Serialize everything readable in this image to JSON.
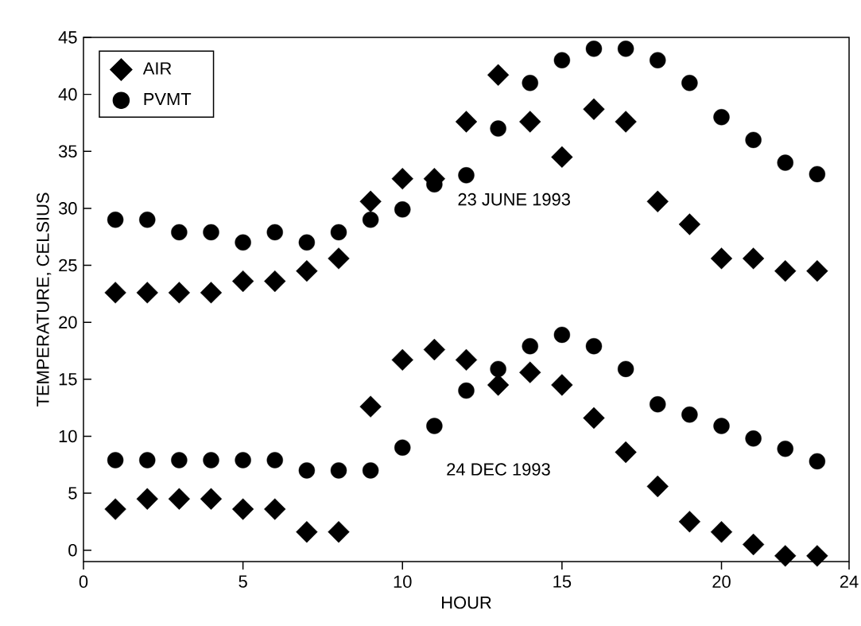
{
  "chart_data": {
    "type": "scatter",
    "xlabel": "HOUR",
    "ylabel": "TEMPERATURE, CELSIUS",
    "x": [
      1,
      2,
      3,
      4,
      5,
      6,
      7,
      8,
      9,
      10,
      11,
      12,
      13,
      14,
      15,
      16,
      17,
      18,
      19,
      20,
      21,
      22,
      23
    ],
    "series": [
      {
        "name": "AIR",
        "color": "#000000",
        "marker": "diamond",
        "values": [
          22.6,
          22.6,
          22.6,
          22.6,
          23.6,
          23.6,
          24.5,
          25.6,
          30.6,
          32.6,
          32.6,
          37.6,
          41.7,
          37.6,
          34.5,
          38.7,
          37.6,
          30.6,
          28.6,
          25.6,
          25.6,
          24.5,
          24.5
        ]
      },
      {
        "name": "PVMT",
        "color": "#000000",
        "marker": "circle",
        "values": [
          29,
          29,
          27.9,
          27.9,
          27,
          27.9,
          27,
          27.9,
          29,
          29.9,
          32.1,
          32.9,
          37,
          41,
          43,
          44,
          44,
          43,
          41,
          38,
          36,
          34,
          33
        ]
      },
      {
        "color": "#000000",
        "marker": "diamond",
        "values": [
          3.6,
          4.5,
          4.5,
          4.5,
          3.6,
          3.6,
          1.6,
          1.6,
          12.6,
          16.7,
          17.6,
          16.7,
          14.5,
          15.6,
          14.5,
          11.6,
          8.6,
          5.6,
          2.5,
          1.6,
          0.5,
          -0.5,
          -0.5
        ]
      },
      {
        "color": "#000000",
        "marker": "circle",
        "values": [
          7.9,
          7.9,
          7.9,
          7.9,
          7.9,
          7.9,
          7,
          7,
          7,
          9,
          10.9,
          14,
          15.9,
          17.9,
          18.9,
          17.9,
          15.9,
          12.8,
          11.9,
          10.9,
          9.8,
          8.9,
          7.8
        ]
      }
    ],
    "annotations": [
      "23 JUNE 1993",
      "24 DEC 1993"
    ],
    "xlim": [
      0,
      24
    ],
    "xticks": [
      0,
      5,
      10,
      15,
      20,
      24
    ],
    "ylim": [
      -1,
      45
    ],
    "yticks": [
      0,
      5,
      10,
      15,
      20,
      25,
      30,
      35,
      40,
      45
    ],
    "grid": false,
    "legend": "top left"
  }
}
